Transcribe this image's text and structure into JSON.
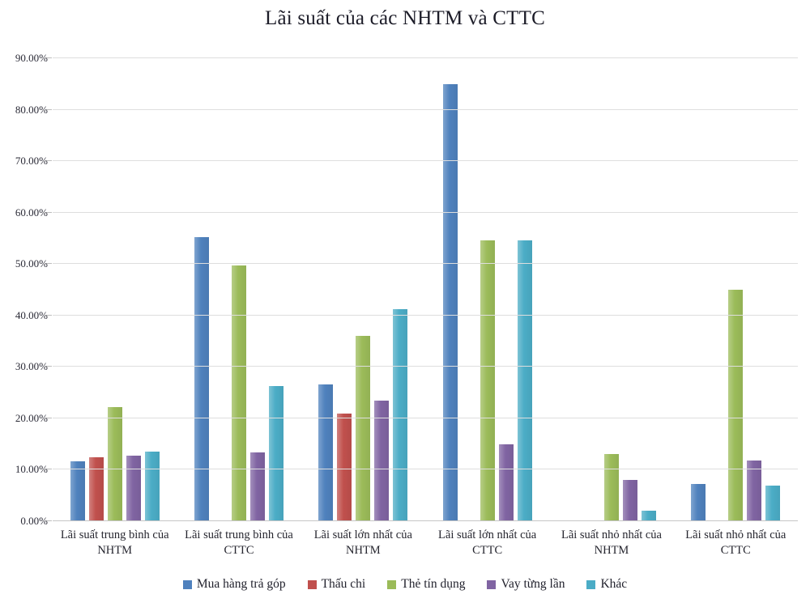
{
  "title": "Lãi suất của các NHTM và CTTC",
  "chart_data": {
    "type": "bar",
    "title": "Lãi suất của các NHTM và CTTC",
    "categories": [
      "Lãi suất trung bình của NHTM",
      "Lãi suất trung bình của CTTC",
      "Lãi suất lớn nhất của NHTM",
      "Lãi suất lớn nhất của CTTC",
      "Lãi suất nhỏ nhất của NHTM",
      "Lãi suất nhỏ nhất của CTTC"
    ],
    "series": [
      {
        "name": "Mua hàng trả góp",
        "color": "#4F81BD",
        "values": [
          11.6,
          55.3,
          26.6,
          85.0,
          null,
          7.3
        ]
      },
      {
        "name": "Thấu chi",
        "color": "#C0504D",
        "values": [
          12.5,
          null,
          21.0,
          null,
          null,
          null
        ]
      },
      {
        "name": "Thẻ tín dụng",
        "color": "#9BBB59",
        "values": [
          22.2,
          49.8,
          36.0,
          54.6,
          13.0,
          45.0
        ]
      },
      {
        "name": "Vay từng lần",
        "color": "#8064A2",
        "values": [
          12.8,
          13.3,
          23.4,
          15.0,
          8.0,
          11.8
        ]
      },
      {
        "name": "Khác",
        "color": "#4BACC6",
        "values": [
          13.6,
          26.3,
          41.2,
          54.6,
          2.0,
          7.0
        ]
      }
    ],
    "ylim": [
      0,
      90
    ],
    "yticks": [
      0,
      10,
      20,
      30,
      40,
      50,
      60,
      70,
      80,
      90
    ],
    "ytick_labels": [
      "0.00%",
      "10.00%",
      "20.00%",
      "30.00%",
      "40.00%",
      "50.00%",
      "60.00%",
      "70.00%",
      "80.00%",
      "90.00%"
    ],
    "grid": true,
    "legend_position": "bottom",
    "colors": {
      "background": "#ffffff",
      "gridline": "#dedede",
      "axis_text": "#26262f",
      "title_text": "#1c1c28"
    }
  }
}
